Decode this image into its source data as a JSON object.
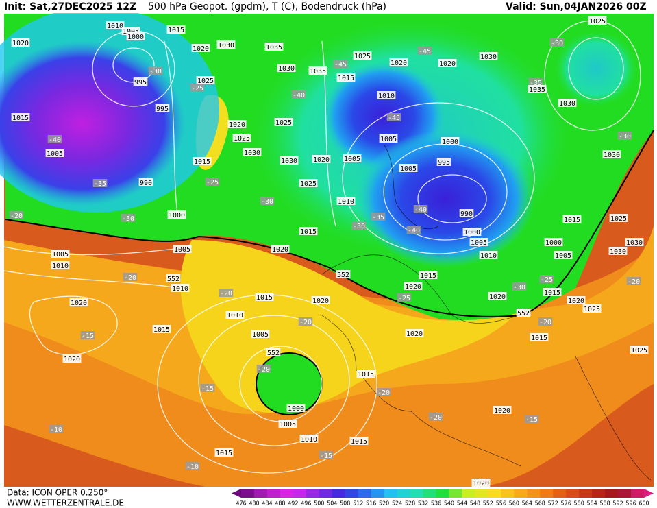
{
  "header": {
    "init": "Init: Sat,27DEC2025 12Z",
    "title": "500 hPa Geopot. (gpdm), T (C), Bodendruck (hPa)",
    "valid": "Valid: Sun,04JAN2026 00Z"
  },
  "footer": {
    "data": "Data: ICON OPER 0.250°",
    "site": "WWW.WETTERZENTRALE.DE"
  },
  "colorbar": {
    "ticks": [
      476,
      480,
      484,
      488,
      492,
      496,
      500,
      504,
      508,
      512,
      516,
      520,
      524,
      528,
      532,
      536,
      540,
      544,
      548,
      552,
      556,
      560,
      564,
      568,
      572,
      576,
      580,
      584,
      588,
      592,
      596,
      600
    ],
    "palette": [
      "#6a0a7a",
      "#b020c0",
      "#e028e8",
      "#8a28e8",
      "#3a2ae0",
      "#2a70f0",
      "#20c8f0",
      "#20e0b0",
      "#20e040",
      "#c8f020",
      "#f8e020",
      "#f8b018",
      "#f08018",
      "#e05018",
      "#c02818",
      "#a01020",
      "#e02080"
    ]
  },
  "map_labels": [
    "1010",
    "1005",
    "1000",
    "1015",
    "1020",
    "1020",
    "1030",
    "1035",
    "-30",
    "995",
    "1025",
    "-25",
    "995",
    "1015",
    "-40",
    "1005",
    "990",
    "-35",
    "1020",
    "1025",
    "1030",
    "1015",
    "-25",
    "1030",
    "1025",
    "1020",
    "1005",
    "1010",
    "-30",
    "-20",
    "-30",
    "1000",
    "1005",
    "1005",
    "1010",
    "1015",
    "1020",
    "-30",
    "-35",
    "1030",
    "-40",
    "1025",
    "1035",
    "1015",
    "-45",
    "1025",
    "1020",
    "-45",
    "1020",
    "1030",
    "1010",
    "-45",
    "1005",
    "1000",
    "995",
    "1005",
    "-40",
    "990",
    "-40",
    "1000",
    "1005",
    "1010",
    "1000",
    "1005",
    "1025",
    "-30",
    "-35",
    "1035",
    "1030",
    "-30",
    "1030",
    "1015",
    "1025",
    "1030",
    "1030",
    "-20",
    "-20",
    "552",
    "1010",
    "1020",
    "-20",
    "1015",
    "1020",
    "1010",
    "-20",
    "1005",
    "1015",
    "-15",
    "1020",
    "552",
    "-20",
    "1015",
    "-20",
    "-15",
    "1000",
    "1005",
    "-20",
    "1020",
    "-15",
    "-10",
    "1010",
    "1015",
    "1015",
    "-15",
    "-10",
    "1020",
    "1025",
    "1020",
    "1025",
    "1015",
    "1020",
    "1015",
    "1020",
    "-25",
    "1020",
    "-30",
    "-25",
    "1015",
    "-20",
    "552",
    "552"
  ]
}
